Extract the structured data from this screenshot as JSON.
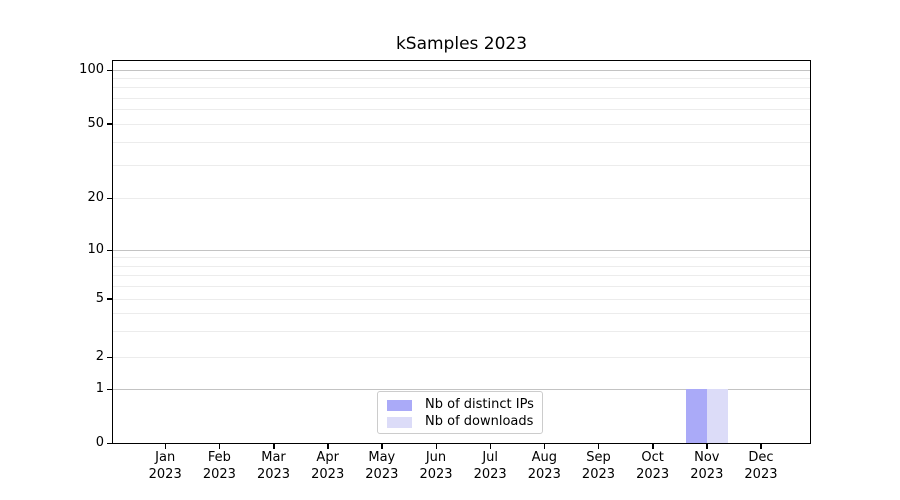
{
  "title": "kSamples 2023",
  "chart_data": {
    "type": "bar",
    "title": "kSamples 2023",
    "categories": [
      "Jan 2023",
      "Feb 2023",
      "Mar 2023",
      "Apr 2023",
      "May 2023",
      "Jun 2023",
      "Jul 2023",
      "Aug 2023",
      "Sep 2023",
      "Oct 2023",
      "Nov 2023",
      "Dec 2023"
    ],
    "series": [
      {
        "name": "Nb of distinct IPs",
        "color": "#aaaaf8",
        "values": [
          0,
          0,
          0,
          0,
          0,
          0,
          0,
          0,
          0,
          0,
          1,
          0
        ]
      },
      {
        "name": "Nb of downloads",
        "color": "#dcdcf8",
        "values": [
          0,
          0,
          0,
          0,
          0,
          0,
          0,
          0,
          0,
          0,
          1,
          0
        ]
      }
    ],
    "y_axis": {
      "scale": "symlog",
      "tick_labels": [
        "100",
        "50",
        "20",
        "10",
        "5",
        "2",
        "1",
        "0"
      ],
      "tick_values": [
        100,
        50,
        20,
        10,
        5,
        2,
        1,
        0
      ],
      "ylim": [
        0,
        110
      ]
    },
    "x_axis": {
      "tick_label_line2": "2023"
    },
    "legend": {
      "position": "inside-bottom-center",
      "entries": [
        "Nb of distinct IPs",
        "Nb of downloads"
      ]
    },
    "grid": "horizontal",
    "colors": {
      "major_grid": "#c3c3c3",
      "minor_grid": "#ececec",
      "spine": "#000000",
      "legend_border": "#cccccc"
    }
  }
}
